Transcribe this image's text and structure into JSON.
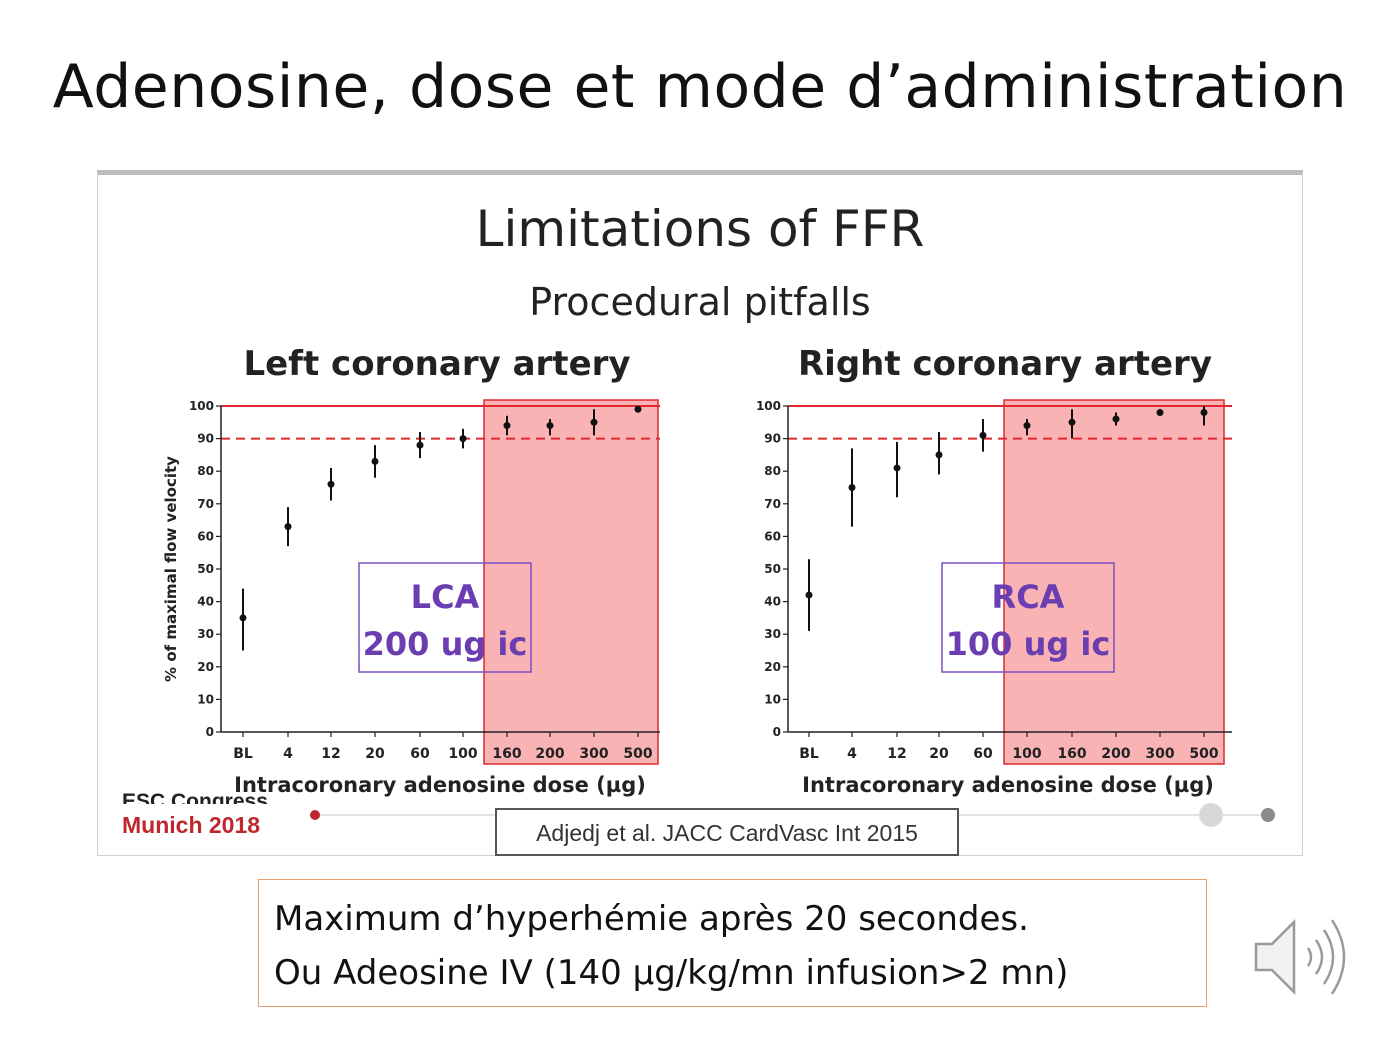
{
  "slide": {
    "title": "Adenosine, dose et mode d’administration",
    "panel_title": "Limitations of FFR",
    "panel_subtitle": "Procedural pitfalls",
    "congress_line1": "ESC Congress",
    "congress_line2": "Munich 2018",
    "citation": "Adjedj et al. JACC CardVasc Int 2015",
    "note_line1": "Maximum d’hyperhémie après 20 secondes.",
    "note_line2": "Ou Adeosine  IV (140 µg/kg/mn infusion>2 mn)",
    "colors": {
      "highlight": "#f9b3b5",
      "highlight_border": "#e0282f",
      "dashed": "#e0282f",
      "box_text": "#6a3db0",
      "esc_red": "#c0272d"
    },
    "icons": [
      "speaker-icon"
    ]
  },
  "chart_data": [
    {
      "type": "scatter",
      "title": "Left coronary artery",
      "xlabel": "Intracoronary adenosine dose (µg)",
      "ylabel": "% of maximal flow velocity",
      "ylim": [
        0,
        100
      ],
      "yticks": [
        0,
        10,
        20,
        30,
        40,
        50,
        60,
        70,
        80,
        90,
        100
      ],
      "categories": [
        "BL",
        "4",
        "12",
        "20",
        "60",
        "100",
        "160",
        "200",
        "300",
        "500"
      ],
      "values": [
        35,
        63,
        76,
        83,
        88,
        90,
        94,
        94,
        95,
        99
      ],
      "err_low": [
        25,
        57,
        71,
        78,
        84,
        87,
        91,
        91,
        91,
        98
      ],
      "err_high": [
        44,
        69,
        81,
        88,
        92,
        93,
        97,
        96,
        99,
        100
      ],
      "reference_lines": [
        100,
        90
      ],
      "highlight_categories": [
        "160",
        "500"
      ],
      "annotation": {
        "line1": "LCA",
        "line2": "200 ug ic"
      }
    },
    {
      "type": "scatter",
      "title": "Right coronary artery",
      "xlabel": "Intracoronary adenosine dose (µg)",
      "ylabel": "",
      "ylim": [
        0,
        100
      ],
      "yticks": [
        0,
        10,
        20,
        30,
        40,
        50,
        60,
        70,
        80,
        90,
        100
      ],
      "categories": [
        "BL",
        "4",
        "12",
        "20",
        "60",
        "100",
        "160",
        "200",
        "300",
        "500"
      ],
      "values": [
        42,
        75,
        81,
        85,
        91,
        94,
        95,
        96,
        98,
        98
      ],
      "err_low": [
        31,
        63,
        72,
        79,
        86,
        91,
        90,
        94,
        97,
        94
      ],
      "err_high": [
        53,
        87,
        89,
        92,
        96,
        96,
        99,
        98,
        99,
        100
      ],
      "reference_lines": [
        100,
        90
      ],
      "highlight_categories": [
        "100",
        "500"
      ],
      "annotation": {
        "line1": "RCA",
        "line2": "100 ug ic"
      }
    }
  ]
}
